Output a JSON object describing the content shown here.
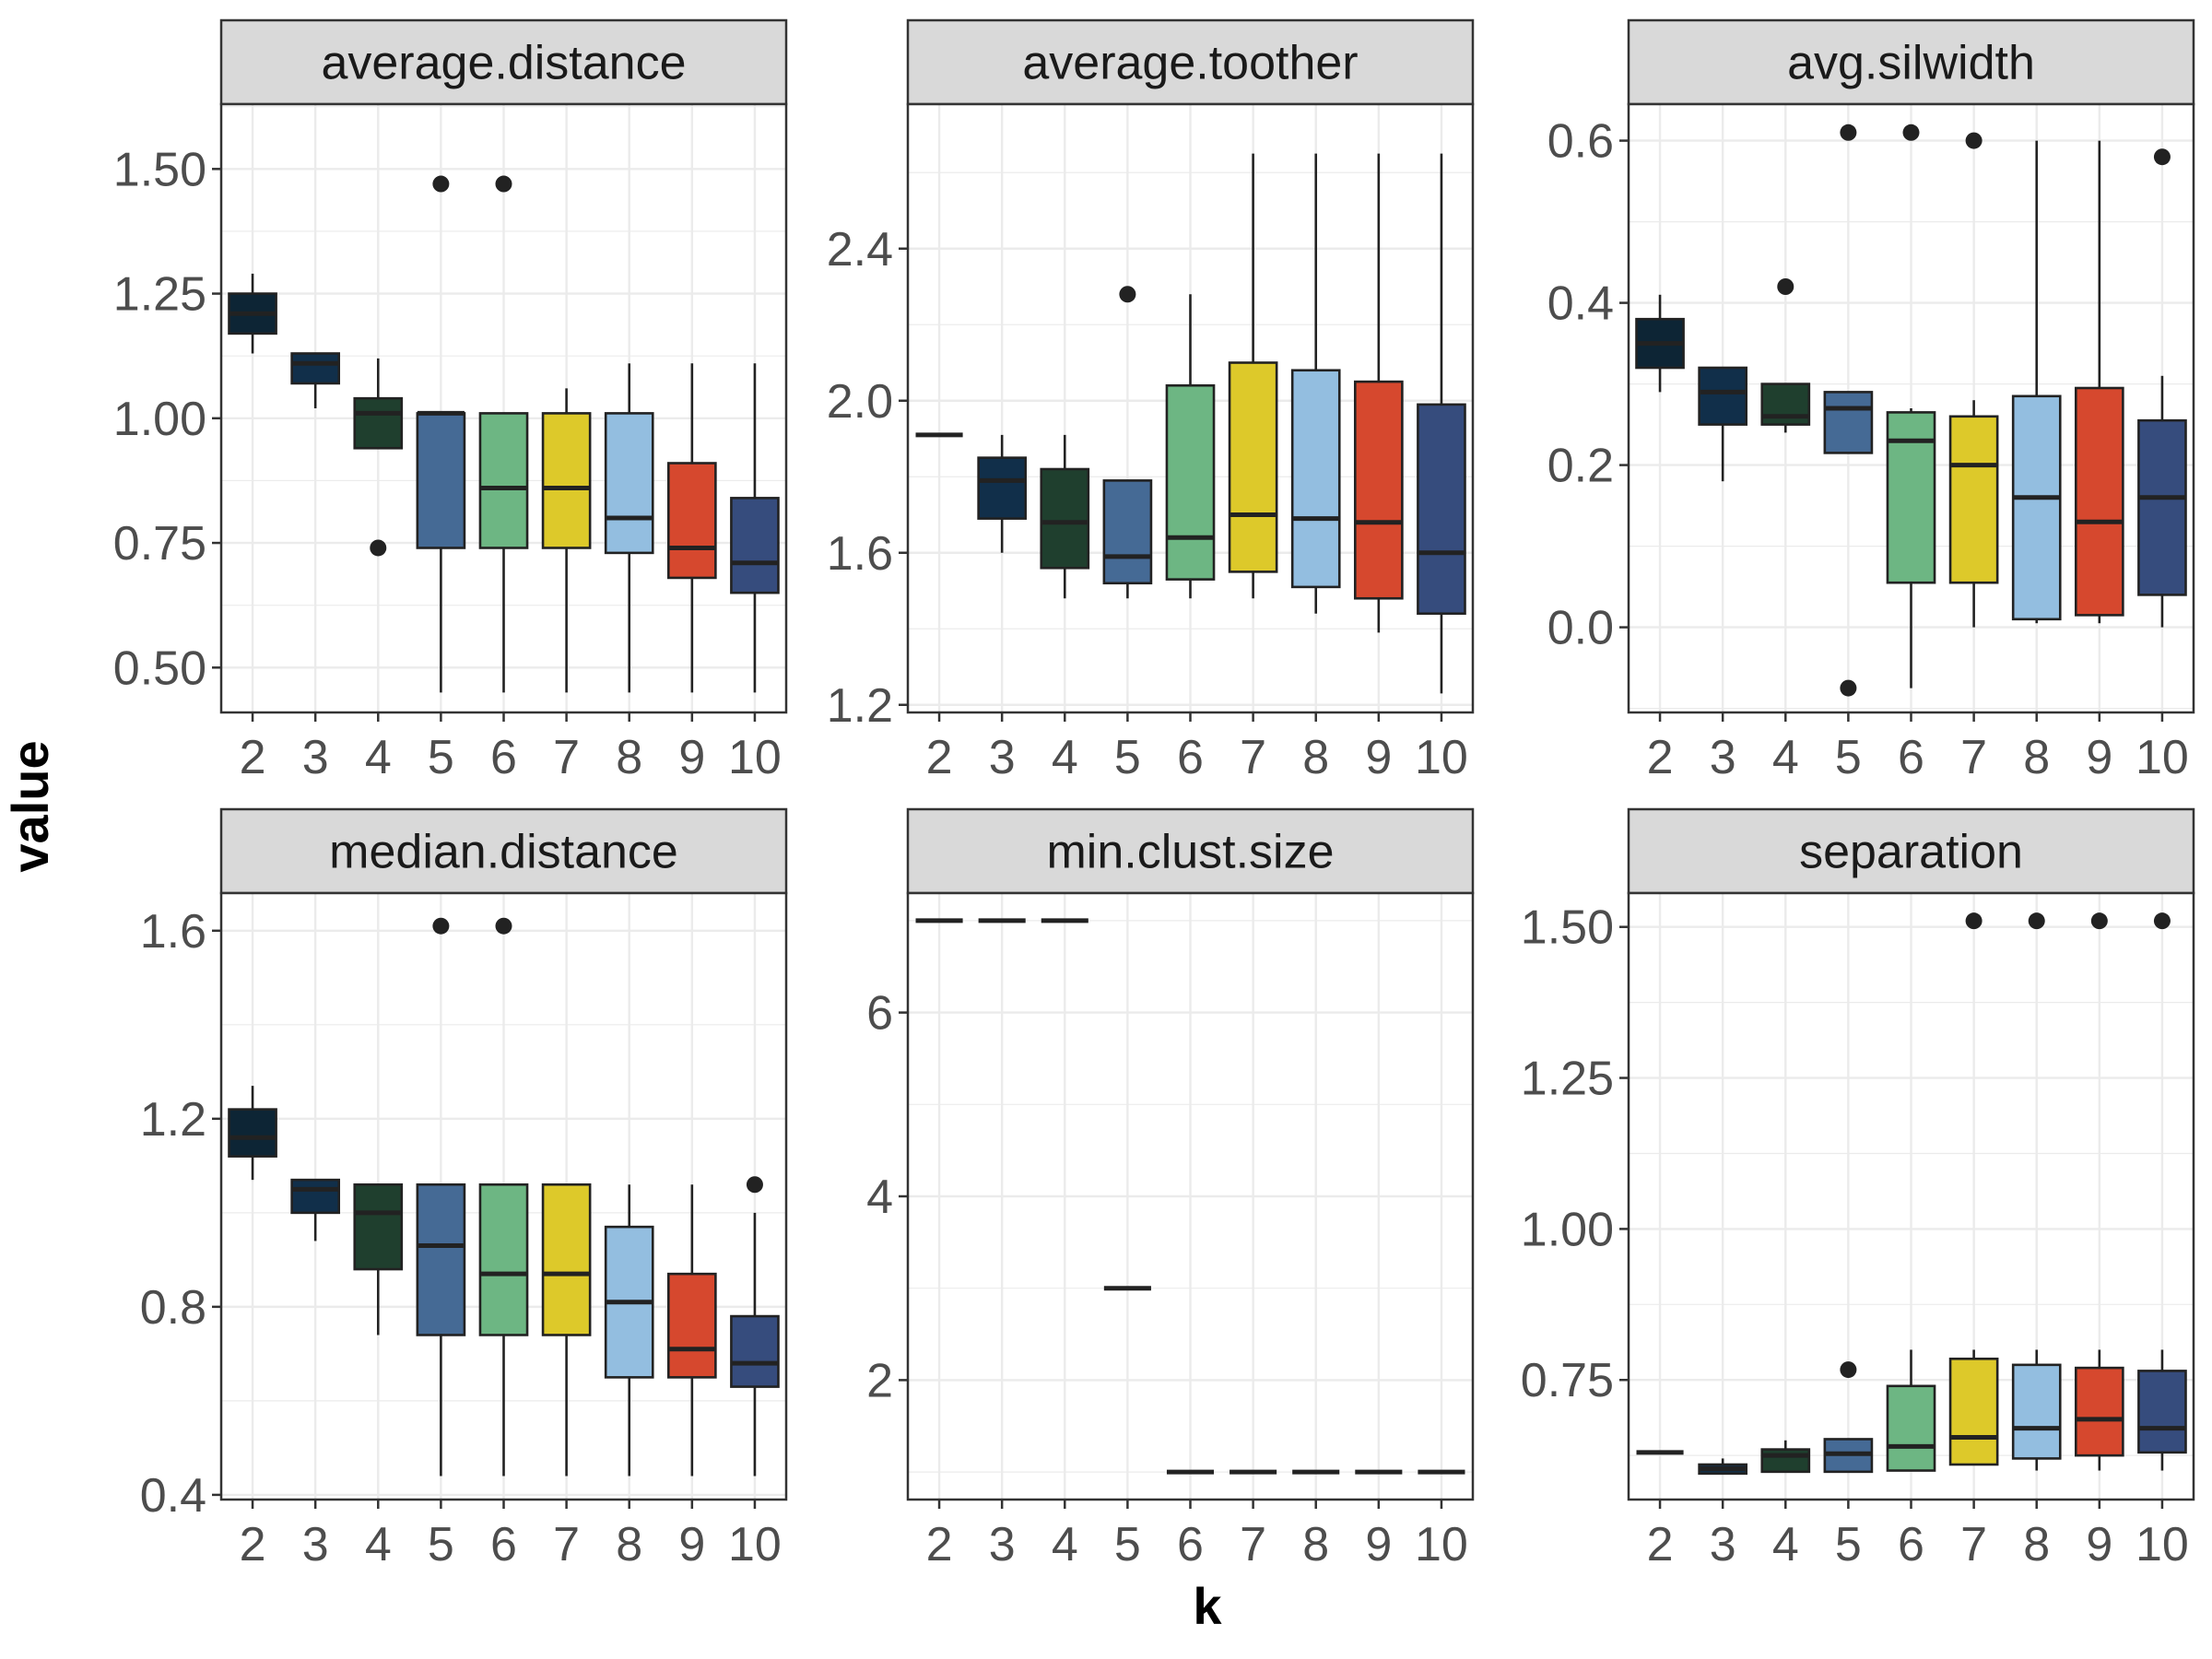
{
  "figure": {
    "x_axis_title": "k",
    "y_axis_title": "value"
  },
  "chart_data": [
    {
      "type": "box",
      "title": "average.distance",
      "categories": [
        "2",
        "3",
        "4",
        "5",
        "6",
        "7",
        "8",
        "9",
        "10"
      ],
      "ylim": [
        0.41,
        1.63
      ],
      "yticks": [
        0.5,
        0.75,
        1.0,
        1.25,
        1.5
      ],
      "ytick_labels": [
        "0.50",
        "0.75",
        "1.00",
        "1.25",
        "1.50"
      ],
      "boxes": [
        {
          "k": "2",
          "min": 1.13,
          "q1": 1.17,
          "median": 1.21,
          "q3": 1.25,
          "max": 1.29,
          "outliers": []
        },
        {
          "k": "3",
          "min": 1.02,
          "q1": 1.07,
          "median": 1.11,
          "q3": 1.13,
          "max": 1.13,
          "outliers": []
        },
        {
          "k": "4",
          "min": 0.94,
          "q1": 0.94,
          "median": 1.01,
          "q3": 1.04,
          "max": 1.12,
          "outliers": [
            0.74
          ]
        },
        {
          "k": "5",
          "min": 0.45,
          "q1": 0.74,
          "median": 1.01,
          "q3": 1.01,
          "max": 1.01,
          "outliers": [
            1.47
          ]
        },
        {
          "k": "6",
          "min": 0.45,
          "q1": 0.74,
          "median": 0.86,
          "q3": 1.01,
          "max": 1.01,
          "outliers": [
            1.47
          ]
        },
        {
          "k": "7",
          "min": 0.45,
          "q1": 0.74,
          "median": 0.86,
          "q3": 1.01,
          "max": 1.06,
          "outliers": []
        },
        {
          "k": "8",
          "min": 0.45,
          "q1": 0.73,
          "median": 0.8,
          "q3": 1.01,
          "max": 1.11,
          "outliers": []
        },
        {
          "k": "9",
          "min": 0.45,
          "q1": 0.68,
          "median": 0.74,
          "q3": 0.91,
          "max": 1.11,
          "outliers": []
        },
        {
          "k": "10",
          "min": 0.45,
          "q1": 0.65,
          "median": 0.71,
          "q3": 0.84,
          "max": 1.11,
          "outliers": []
        }
      ]
    },
    {
      "type": "box",
      "title": "average.toother",
      "categories": [
        "2",
        "3",
        "4",
        "5",
        "6",
        "7",
        "8",
        "9",
        "10"
      ],
      "ylim": [
        1.18,
        2.78
      ],
      "yticks": [
        1.2,
        1.6,
        2.0,
        2.4
      ],
      "ytick_labels": [
        "1.2",
        "1.6",
        "2.0",
        "2.4"
      ],
      "boxes": [
        {
          "k": "2",
          "min": 1.91,
          "q1": 1.91,
          "median": 1.91,
          "q3": 1.91,
          "max": 1.91,
          "outliers": []
        },
        {
          "k": "3",
          "min": 1.6,
          "q1": 1.69,
          "median": 1.79,
          "q3": 1.85,
          "max": 1.91,
          "outliers": []
        },
        {
          "k": "4",
          "min": 1.48,
          "q1": 1.56,
          "median": 1.68,
          "q3": 1.82,
          "max": 1.91,
          "outliers": []
        },
        {
          "k": "5",
          "min": 1.48,
          "q1": 1.52,
          "median": 1.59,
          "q3": 1.79,
          "max": 1.79,
          "outliers": [
            2.28
          ]
        },
        {
          "k": "6",
          "min": 1.48,
          "q1": 1.53,
          "median": 1.64,
          "q3": 2.04,
          "max": 2.28,
          "outliers": []
        },
        {
          "k": "7",
          "min": 1.48,
          "q1": 1.55,
          "median": 1.7,
          "q3": 2.1,
          "max": 2.65,
          "outliers": []
        },
        {
          "k": "8",
          "min": 1.44,
          "q1": 1.51,
          "median": 1.69,
          "q3": 2.08,
          "max": 2.65,
          "outliers": []
        },
        {
          "k": "9",
          "min": 1.39,
          "q1": 1.48,
          "median": 1.68,
          "q3": 2.05,
          "max": 2.65,
          "outliers": []
        },
        {
          "k": "10",
          "min": 1.23,
          "q1": 1.44,
          "median": 1.6,
          "q3": 1.99,
          "max": 2.65,
          "outliers": []
        }
      ]
    },
    {
      "type": "box",
      "title": "avg.silwidth",
      "categories": [
        "2",
        "3",
        "4",
        "5",
        "6",
        "7",
        "8",
        "9",
        "10"
      ],
      "ylim": [
        -0.105,
        0.645
      ],
      "yticks": [
        0.0,
        0.2,
        0.4,
        0.6
      ],
      "ytick_labels": [
        "0.0",
        "0.2",
        "0.4",
        "0.6"
      ],
      "boxes": [
        {
          "k": "2",
          "min": 0.29,
          "q1": 0.32,
          "median": 0.35,
          "q3": 0.38,
          "max": 0.41,
          "outliers": []
        },
        {
          "k": "3",
          "min": 0.18,
          "q1": 0.25,
          "median": 0.29,
          "q3": 0.32,
          "max": 0.32,
          "outliers": []
        },
        {
          "k": "4",
          "min": 0.24,
          "q1": 0.25,
          "median": 0.26,
          "q3": 0.3,
          "max": 0.3,
          "outliers": [
            0.42
          ]
        },
        {
          "k": "5",
          "min": 0.215,
          "q1": 0.215,
          "median": 0.27,
          "q3": 0.29,
          "max": 0.29,
          "outliers": [
            0.61,
            -0.075
          ]
        },
        {
          "k": "6",
          "min": -0.075,
          "q1": 0.055,
          "median": 0.23,
          "q3": 0.265,
          "max": 0.27,
          "outliers": [
            0.61
          ]
        },
        {
          "k": "7",
          "min": 0.0,
          "q1": 0.055,
          "median": 0.2,
          "q3": 0.26,
          "max": 0.28,
          "outliers": [
            0.6
          ]
        },
        {
          "k": "8",
          "min": 0.005,
          "q1": 0.01,
          "median": 0.16,
          "q3": 0.285,
          "max": 0.6,
          "outliers": []
        },
        {
          "k": "9",
          "min": 0.005,
          "q1": 0.015,
          "median": 0.13,
          "q3": 0.295,
          "max": 0.6,
          "outliers": []
        },
        {
          "k": "10",
          "min": 0.0,
          "q1": 0.04,
          "median": 0.16,
          "q3": 0.255,
          "max": 0.31,
          "outliers": [
            0.58
          ]
        }
      ]
    },
    {
      "type": "box",
      "title": "median.distance",
      "categories": [
        "2",
        "3",
        "4",
        "5",
        "6",
        "7",
        "8",
        "9",
        "10"
      ],
      "ylim": [
        0.39,
        1.68
      ],
      "yticks": [
        0.4,
        0.8,
        1.2,
        1.6
      ],
      "ytick_labels": [
        "0.4",
        "0.8",
        "1.2",
        "1.6"
      ],
      "boxes": [
        {
          "k": "2",
          "min": 1.07,
          "q1": 1.12,
          "median": 1.16,
          "q3": 1.22,
          "max": 1.27,
          "outliers": []
        },
        {
          "k": "3",
          "min": 0.94,
          "q1": 1.0,
          "median": 1.05,
          "q3": 1.07,
          "max": 1.07,
          "outliers": []
        },
        {
          "k": "4",
          "min": 0.74,
          "q1": 0.88,
          "median": 1.0,
          "q3": 1.06,
          "max": 1.06,
          "outliers": []
        },
        {
          "k": "5",
          "min": 0.44,
          "q1": 0.74,
          "median": 0.93,
          "q3": 1.06,
          "max": 1.06,
          "outliers": [
            1.61
          ]
        },
        {
          "k": "6",
          "min": 0.44,
          "q1": 0.74,
          "median": 0.87,
          "q3": 1.06,
          "max": 1.06,
          "outliers": [
            1.61
          ]
        },
        {
          "k": "7",
          "min": 0.44,
          "q1": 0.74,
          "median": 0.87,
          "q3": 1.06,
          "max": 1.06,
          "outliers": []
        },
        {
          "k": "8",
          "min": 0.44,
          "q1": 0.65,
          "median": 0.81,
          "q3": 0.97,
          "max": 1.06,
          "outliers": []
        },
        {
          "k": "9",
          "min": 0.44,
          "q1": 0.65,
          "median": 0.71,
          "q3": 0.87,
          "max": 1.06,
          "outliers": []
        },
        {
          "k": "10",
          "min": 0.44,
          "q1": 0.63,
          "median": 0.68,
          "q3": 0.78,
          "max": 1.0,
          "outliers": [
            1.06
          ]
        }
      ]
    },
    {
      "type": "box",
      "title": "min.clust.size",
      "categories": [
        "2",
        "3",
        "4",
        "5",
        "6",
        "7",
        "8",
        "9",
        "10"
      ],
      "ylim": [
        0.7,
        7.3
      ],
      "yticks": [
        2,
        4,
        6
      ],
      "ytick_labels": [
        "2",
        "4",
        "6"
      ],
      "boxes": [
        {
          "k": "2",
          "min": 7,
          "q1": 7,
          "median": 7,
          "q3": 7,
          "max": 7,
          "outliers": []
        },
        {
          "k": "3",
          "min": 7,
          "q1": 7,
          "median": 7,
          "q3": 7,
          "max": 7,
          "outliers": []
        },
        {
          "k": "4",
          "min": 7,
          "q1": 7,
          "median": 7,
          "q3": 7,
          "max": 7,
          "outliers": []
        },
        {
          "k": "5",
          "min": 3,
          "q1": 3,
          "median": 3,
          "q3": 3,
          "max": 3,
          "outliers": []
        },
        {
          "k": "6",
          "min": 1,
          "q1": 1,
          "median": 1,
          "q3": 1,
          "max": 1,
          "outliers": []
        },
        {
          "k": "7",
          "min": 1,
          "q1": 1,
          "median": 1,
          "q3": 1,
          "max": 1,
          "outliers": []
        },
        {
          "k": "8",
          "min": 1,
          "q1": 1,
          "median": 1,
          "q3": 1,
          "max": 1,
          "outliers": []
        },
        {
          "k": "9",
          "min": 1,
          "q1": 1,
          "median": 1,
          "q3": 1,
          "max": 1,
          "outliers": []
        },
        {
          "k": "10",
          "min": 1,
          "q1": 1,
          "median": 1,
          "q3": 1,
          "max": 1,
          "outliers": []
        }
      ]
    },
    {
      "type": "box",
      "title": "separation",
      "categories": [
        "2",
        "3",
        "4",
        "5",
        "6",
        "7",
        "8",
        "9",
        "10"
      ],
      "ylim": [
        0.552,
        1.556
      ],
      "yticks": [
        0.75,
        1.0,
        1.25,
        1.5
      ],
      "ytick_labels": [
        "0.75",
        "1.00",
        "1.25",
        "1.50"
      ],
      "boxes": [
        {
          "k": "2",
          "min": 0.63,
          "q1": 0.63,
          "median": 0.63,
          "q3": 0.63,
          "max": 0.63,
          "outliers": []
        },
        {
          "k": "3",
          "min": 0.595,
          "q1": 0.595,
          "median": 0.603,
          "q3": 0.61,
          "max": 0.62,
          "outliers": []
        },
        {
          "k": "4",
          "min": 0.598,
          "q1": 0.598,
          "median": 0.625,
          "q3": 0.635,
          "max": 0.65,
          "outliers": []
        },
        {
          "k": "5",
          "min": 0.598,
          "q1": 0.598,
          "median": 0.628,
          "q3": 0.652,
          "max": 0.652,
          "outliers": [
            0.767
          ]
        },
        {
          "k": "6",
          "min": 0.6,
          "q1": 0.6,
          "median": 0.64,
          "q3": 0.74,
          "max": 0.8,
          "outliers": []
        },
        {
          "k": "7",
          "min": 0.61,
          "q1": 0.61,
          "median": 0.655,
          "q3": 0.785,
          "max": 0.8,
          "outliers": [
            1.51
          ]
        },
        {
          "k": "8",
          "min": 0.6,
          "q1": 0.62,
          "median": 0.67,
          "q3": 0.775,
          "max": 0.8,
          "outliers": [
            1.51
          ]
        },
        {
          "k": "9",
          "min": 0.6,
          "q1": 0.625,
          "median": 0.685,
          "q3": 0.77,
          "max": 0.8,
          "outliers": [
            1.51
          ]
        },
        {
          "k": "10",
          "min": 0.6,
          "q1": 0.63,
          "median": 0.67,
          "q3": 0.765,
          "max": 0.8,
          "outliers": [
            1.51
          ]
        }
      ]
    }
  ],
  "fill_colors": [
    "#0d2535",
    "#112f4a",
    "#1f3f2e",
    "#456a95",
    "#6db683",
    "#ddc92a",
    "#93bee0",
    "#d6482e",
    "#364c7d"
  ],
  "line_color": "#222222",
  "strip_fill": "#d9d9d9",
  "grid_color": "#ebebeb"
}
